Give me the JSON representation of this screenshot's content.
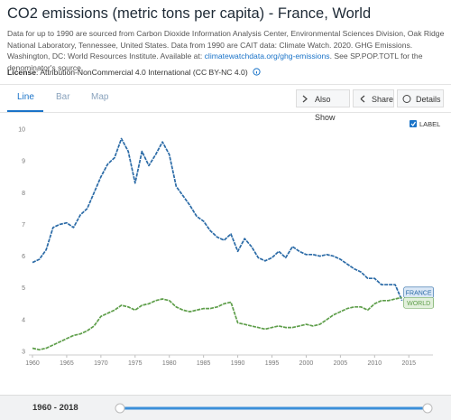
{
  "header": {
    "title": "CO2 emissions (metric tons per capita) - France, World",
    "description": "Data for up to 1990 are sourced from Carbon Dioxide Information Analysis Center, Environmental Sciences Division, Oak Ridge National Laboratory, Tennessee, United States. Data from 1990 are CAIT data: Climate Watch. 2020. GHG Emissions. Washington, DC: World Resources Institute. Available at: ",
    "link": "climatewatchdata.org/ghg-emissions",
    "description_end": ". See SP.POP.TOTL for the denominator's source.",
    "license_label": "License",
    "license_text": ": Attribution-NonCommercial 4.0 International (CC BY-NC 4.0)"
  },
  "tabs": [
    "Line",
    "Bar",
    "Map"
  ],
  "buttons": [
    "Also Show",
    "Share",
    "Details"
  ],
  "label_toggle": "LABEL",
  "range_label": "1960 - 2018",
  "chart_data": {
    "type": "line",
    "x": [
      1960,
      1961,
      1962,
      1963,
      1964,
      1965,
      1966,
      1967,
      1968,
      1969,
      1970,
      1971,
      1972,
      1973,
      1974,
      1975,
      1976,
      1977,
      1978,
      1979,
      1980,
      1981,
      1982,
      1983,
      1984,
      1985,
      1986,
      1987,
      1988,
      1989,
      1990,
      1991,
      1992,
      1993,
      1994,
      1995,
      1996,
      1997,
      1998,
      1999,
      2000,
      2001,
      2002,
      2003,
      2004,
      2005,
      2006,
      2007,
      2008,
      2009,
      2010,
      2011,
      2012,
      2013,
      2014,
      2015,
      2016,
      2017,
      2018
    ],
    "series": [
      {
        "name": "FRANCE",
        "color": "#2a6aa6",
        "label_color": "#dbe8f6",
        "values": [
          5.8,
          5.9,
          6.2,
          6.9,
          7.0,
          7.05,
          6.9,
          7.3,
          7.5,
          8.0,
          8.5,
          8.9,
          9.1,
          9.7,
          9.3,
          8.3,
          9.3,
          8.85,
          9.2,
          9.6,
          9.2,
          8.2,
          7.9,
          7.6,
          7.25,
          7.1,
          6.8,
          6.6,
          6.5,
          6.7,
          6.15,
          6.55,
          6.3,
          5.95,
          5.85,
          5.95,
          6.15,
          5.95,
          6.3,
          6.15,
          6.05,
          6.05,
          6.0,
          6.05,
          6.0,
          5.9,
          5.75,
          5.6,
          5.5,
          5.3,
          5.3,
          5.1,
          5.1,
          5.1,
          4.6,
          null,
          null,
          null,
          null
        ]
      },
      {
        "name": "WORLD",
        "color": "#5e9e4a",
        "label_color": "#e2f0dc",
        "values": [
          3.1,
          3.05,
          3.1,
          3.2,
          3.3,
          3.4,
          3.5,
          3.55,
          3.65,
          3.8,
          4.1,
          4.2,
          4.3,
          4.45,
          4.4,
          4.3,
          4.45,
          4.5,
          4.6,
          4.65,
          4.6,
          4.4,
          4.3,
          4.25,
          4.3,
          4.35,
          4.35,
          4.4,
          4.5,
          4.55,
          3.9,
          3.85,
          3.8,
          3.75,
          3.7,
          3.75,
          3.8,
          3.75,
          3.75,
          3.8,
          3.85,
          3.8,
          3.85,
          4.0,
          4.15,
          4.25,
          4.35,
          4.4,
          4.4,
          4.3,
          4.5,
          4.6,
          4.6,
          4.65,
          4.7,
          null,
          null,
          null,
          null
        ]
      }
    ],
    "xlim": [
      1960,
      2018
    ],
    "xticks": [
      1960,
      1965,
      1970,
      1975,
      1980,
      1985,
      1990,
      1995,
      2000,
      2005,
      2010,
      2015
    ],
    "ylim": [
      3,
      10
    ],
    "yticks": [
      3,
      4,
      5,
      6,
      7,
      8,
      9,
      10
    ],
    "grid": false
  }
}
